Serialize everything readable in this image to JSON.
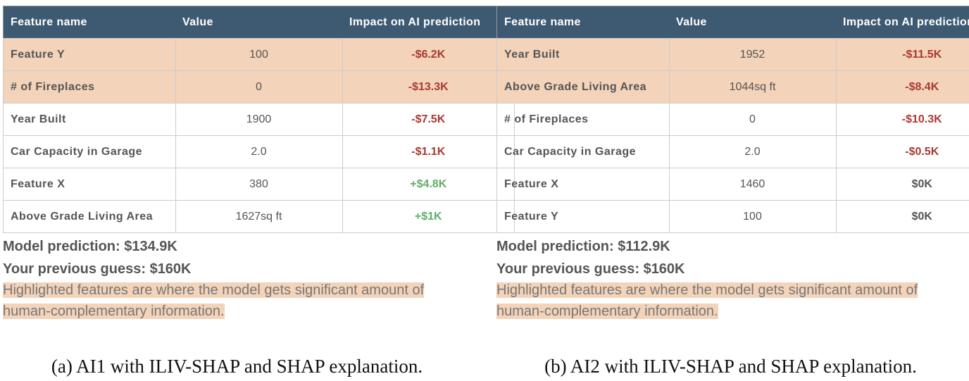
{
  "panels": [
    {
      "header": [
        "Feature name",
        "Value",
        "Impact on AI prediction"
      ],
      "rows": [
        {
          "name": "Feature Y",
          "value": "100",
          "impact": "-$6.2K",
          "color": "#a83a32",
          "highlight": true
        },
        {
          "name": "# of Fireplaces",
          "value": "0",
          "impact": "-$13.3K",
          "color": "#a83a32",
          "highlight": true
        },
        {
          "name": "Year Built",
          "value": "1900",
          "impact": "-$7.5K",
          "color": "#a83a32",
          "highlight": false
        },
        {
          "name": "Car Capacity in Garage",
          "value": "2.0",
          "impact": "-$1.1K",
          "color": "#a83a32",
          "highlight": false
        },
        {
          "name": "Feature X",
          "value": "380",
          "impact": "+$4.8K",
          "color": "#5fae6a",
          "highlight": false
        },
        {
          "name": "Above Grade Living Area",
          "value": "1627sq ft",
          "impact": "+$1K",
          "color": "#5fae6a",
          "highlight": false
        }
      ],
      "prediction": "Model prediction: $134.9K",
      "guess": "Your previous guess: $160K",
      "note": "Highlighted features are where the model gets significant amount of human-complementary information.",
      "caption": "(a) AI1 with ILIV-SHAP and SHAP explanation."
    },
    {
      "header": [
        "Feature name",
        "Value",
        "Impact on AI prediction"
      ],
      "rows": [
        {
          "name": "Year Built",
          "value": "1952",
          "impact": "-$11.5K",
          "color": "#a83a32",
          "highlight": true
        },
        {
          "name": "Above Grade Living Area",
          "value": "1044sq ft",
          "impact": "-$8.4K",
          "color": "#a83a32",
          "highlight": true
        },
        {
          "name": "# of Fireplaces",
          "value": "0",
          "impact": "-$10.3K",
          "color": "#a83a32",
          "highlight": false
        },
        {
          "name": "Car Capacity in Garage",
          "value": "2.0",
          "impact": "-$0.5K",
          "color": "#a83a32",
          "highlight": false
        },
        {
          "name": "Feature X",
          "value": "1460",
          "impact": "$0K",
          "color": "#555555",
          "highlight": false
        },
        {
          "name": "Feature Y",
          "value": "100",
          "impact": "$0K",
          "color": "#555555",
          "highlight": false
        }
      ],
      "prediction": "Model prediction: $112.9K",
      "guess": "Your previous guess: $160K",
      "note": "Highlighted features are where the model gets significant amount of human-complementary information.",
      "caption": "(b) AI2 with ILIV-SHAP and SHAP explanation."
    }
  ]
}
